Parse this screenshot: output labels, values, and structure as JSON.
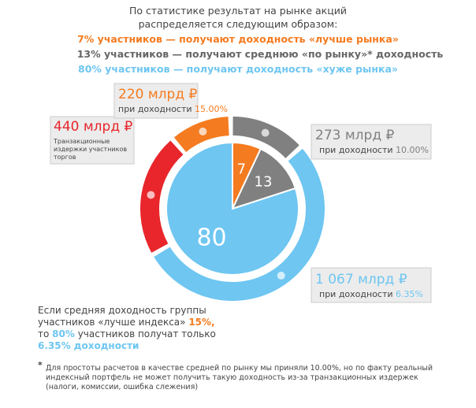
{
  "header": {
    "lines": [
      "По статистике результат на рынке акций",
      "распределяется следующим образом:",
      "7% участников — получают доходность «лучше рынка»",
      "13% участников — получают  среднюю «по рынку»* доходность",
      "80% участников — получают доходность «хуже рынка»"
    ]
  },
  "chart_data": [
    {
      "type": "donut",
      "values": [
        440,
        220,
        273,
        1067
      ],
      "value_labels": [
        "440 млрд ₽",
        "220 млрд ₽",
        "273 млрд ₽",
        "1 067 млрд ₽"
      ],
      "colors": [
        "#e8262b",
        "#f47b20",
        "#808080",
        "#6ec6f1"
      ],
      "notes": [
        {
          "lines": [
            "Транзакционные",
            "издержки участников",
            "торгов"
          ]
        },
        {
          "text": "при доходности",
          "rate": "15.00%"
        },
        {
          "text": "при доходности",
          "rate": "10.00%"
        },
        {
          "text": "при доходности",
          "rate": "6.35%"
        }
      ]
    },
    {
      "type": "pie",
      "values": [
        7,
        13,
        80
      ],
      "colors": [
        "#f47b20",
        "#808080",
        "#6ec6f1"
      ]
    }
  ],
  "conclusion": [
    [
      "Если средняя доходность группы"
    ],
    [
      "участников «лучше индекса» ",
      "15%,"
    ],
    [
      "то ",
      "80%",
      " участников получат только"
    ],
    [
      "6.35% доходности"
    ]
  ],
  "footnote": {
    "mark": "*",
    "lines": [
      "Для простоты расчетов в качестве средней по рынку мы приняли 10.00%, но по факту реальный",
      "индексный портфель не может получить такую доходность из-за транзакционных издержек",
      "(налоги, комиссии, ошибка слежения)"
    ]
  }
}
